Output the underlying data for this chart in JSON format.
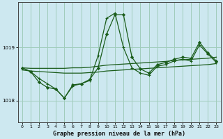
{
  "title": "Graphe pression niveau de la mer (hPa)",
  "bg_color": "#cde8f0",
  "grid_color": "#a0ccbb",
  "line_color": "#1a5c1a",
  "xlim": [
    -0.5,
    23.5
  ],
  "ylim": [
    1017.6,
    1019.85
  ],
  "yticks": [
    1018,
    1019
  ],
  "xticks": [
    0,
    1,
    2,
    3,
    4,
    5,
    6,
    7,
    8,
    9,
    10,
    11,
    12,
    13,
    14,
    15,
    16,
    17,
    18,
    19,
    20,
    21,
    22,
    23
  ],
  "s1_x": [
    0,
    1,
    2,
    3,
    4,
    5,
    6,
    7,
    8,
    9,
    10,
    11,
    12,
    13,
    14,
    15,
    16,
    17,
    18,
    19,
    20,
    21,
    22,
    23
  ],
  "s1_y": [
    1018.62,
    1018.55,
    1018.42,
    1018.32,
    1018.22,
    1018.05,
    1018.28,
    1018.32,
    1018.38,
    1018.85,
    1019.55,
    1019.65,
    1019.0,
    1018.62,
    1018.52,
    1018.48,
    1018.65,
    1018.68,
    1018.75,
    1018.78,
    1018.75,
    1019.05,
    1018.88,
    1018.72
  ],
  "s2_x": [
    0,
    1,
    2,
    3,
    4,
    5,
    6,
    7,
    8,
    9,
    10,
    11,
    12,
    13,
    14,
    15,
    16,
    17,
    18,
    19,
    20,
    21,
    22,
    23
  ],
  "s2_y": [
    1018.62,
    1018.55,
    1018.35,
    1018.25,
    1018.22,
    1018.05,
    1018.3,
    1018.32,
    1018.4,
    1018.62,
    1019.25,
    1019.62,
    1019.62,
    1018.82,
    1018.6,
    1018.52,
    1018.68,
    1018.72,
    1018.78,
    1018.82,
    1018.8,
    1019.1,
    1018.9,
    1018.75
  ],
  "s3_x": [
    0,
    1,
    2,
    3,
    4,
    5,
    6,
    7,
    8,
    9,
    10,
    11,
    12,
    13,
    14,
    15,
    16,
    17,
    18,
    19,
    20,
    21,
    22,
    23
  ],
  "s3_y": [
    1018.62,
    1018.61,
    1018.61,
    1018.61,
    1018.61,
    1018.61,
    1018.62,
    1018.62,
    1018.63,
    1018.65,
    1018.67,
    1018.68,
    1018.69,
    1018.7,
    1018.71,
    1018.72,
    1018.73,
    1018.74,
    1018.76,
    1018.77,
    1018.78,
    1018.79,
    1018.8,
    1018.82
  ],
  "s4_x": [
    0,
    1,
    2,
    3,
    4,
    5,
    6,
    7,
    8,
    9,
    10,
    11,
    12,
    13,
    14,
    15,
    16,
    17,
    18,
    19,
    20,
    21,
    22,
    23
  ],
  "s4_y": [
    1018.58,
    1018.56,
    1018.55,
    1018.54,
    1018.53,
    1018.52,
    1018.52,
    1018.52,
    1018.53,
    1018.54,
    1018.56,
    1018.57,
    1018.58,
    1018.59,
    1018.6,
    1018.61,
    1018.62,
    1018.63,
    1018.64,
    1018.65,
    1018.66,
    1018.67,
    1018.68,
    1018.7
  ]
}
